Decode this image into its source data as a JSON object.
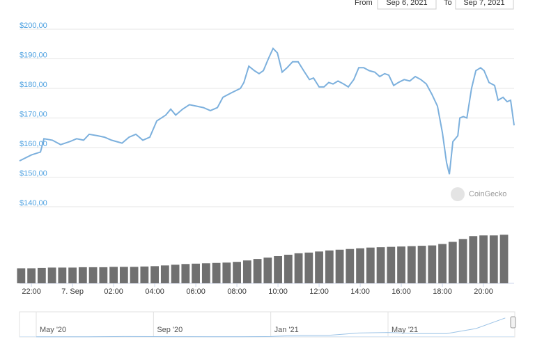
{
  "range_selector": {
    "from_label": "From",
    "from_date": "Sep 6, 2021",
    "to_label": "To",
    "to_date": "Sep 7, 2021"
  },
  "watermark": "CoinGecko",
  "chart_data": [
    {
      "type": "line",
      "color": "#7cb0dd",
      "grid": true,
      "x": [
        21.42,
        22.0,
        22.44,
        22.61,
        23.02,
        23.42,
        23.86,
        24.2,
        24.54,
        24.81,
        25.22,
        25.56,
        25.9,
        26.41,
        26.75,
        27.08,
        27.42,
        27.76,
        28.1,
        28.54,
        28.78,
        29.02,
        29.36,
        29.69,
        30.03,
        30.37,
        30.71,
        31.05,
        31.32,
        31.73,
        32.17,
        32.34,
        32.58,
        32.85,
        33.08,
        33.29,
        33.53,
        33.76,
        33.97,
        34.2,
        34.44,
        34.71,
        34.98,
        35.25,
        35.53,
        35.73,
        36.0,
        36.24,
        36.47,
        36.68,
        36.92,
        37.19,
        37.42,
        37.69,
        37.93,
        38.17,
        38.44,
        38.71,
        38.95,
        39.19,
        39.39,
        39.63,
        39.86,
        40.14,
        40.41,
        40.68,
        40.95,
        41.22,
        41.49,
        41.76,
        42.0,
        42.2,
        42.34,
        42.51,
        42.75,
        42.85,
        43.02,
        43.19,
        43.42,
        43.63,
        43.86,
        44.03,
        44.27,
        44.54,
        44.71,
        44.95,
        45.15,
        45.32,
        45.49
      ],
      "values": [
        155.5,
        157.5,
        158.5,
        163,
        162.5,
        161,
        162,
        163,
        162.5,
        164.5,
        164,
        163.5,
        162.5,
        161.5,
        163.5,
        164.5,
        162.5,
        163.5,
        169,
        171,
        173,
        171,
        173,
        174.5,
        174,
        173.5,
        172.5,
        173.5,
        177,
        178.5,
        180,
        182,
        187.5,
        186,
        185,
        186,
        190,
        193.5,
        192,
        185.5,
        187,
        189,
        189,
        186,
        183,
        183.5,
        180.5,
        180.5,
        182,
        181.5,
        182.5,
        181.5,
        180.5,
        183,
        187,
        187,
        186,
        185.5,
        184,
        185,
        184.5,
        181,
        182,
        183,
        182.5,
        184,
        183,
        181.5,
        178,
        174,
        165,
        155,
        151,
        162,
        164,
        170,
        170.5,
        170,
        180,
        186,
        187,
        186,
        182,
        181,
        176,
        177,
        175.5,
        176,
        167.5
      ],
      "xlim": [
        21.42,
        45.49
      ],
      "xticks": [
        {
          "value": 22,
          "label": "22:00"
        },
        {
          "value": 24,
          "label": "7. Sep"
        },
        {
          "value": 26,
          "label": "02:00"
        },
        {
          "value": 28,
          "label": "04:00"
        },
        {
          "value": 30,
          "label": "06:00"
        },
        {
          "value": 32,
          "label": "08:00"
        },
        {
          "value": 34,
          "label": "10:00"
        },
        {
          "value": 36,
          "label": "12:00"
        },
        {
          "value": 38,
          "label": "14:00"
        },
        {
          "value": 40,
          "label": "16:00"
        },
        {
          "value": 42,
          "label": "18:00"
        },
        {
          "value": 44,
          "label": "20:00"
        }
      ],
      "ylim": [
        140,
        200
      ],
      "yticks": [
        {
          "value": 140,
          "label": "$140,00"
        },
        {
          "value": 150,
          "label": "$150,00"
        },
        {
          "value": 160,
          "label": "$160,00"
        },
        {
          "value": 170,
          "label": "$170,00"
        },
        {
          "value": 180,
          "label": "$180,00"
        },
        {
          "value": 190,
          "label": "$190,00"
        },
        {
          "value": 200,
          "label": "$200,00"
        }
      ]
    },
    {
      "type": "bar",
      "color": "#707070",
      "x": [
        21.5,
        22,
        22.5,
        23,
        23.5,
        24,
        24.5,
        25,
        25.5,
        26,
        26.5,
        27,
        27.5,
        28,
        28.5,
        29,
        29.5,
        30,
        30.5,
        31,
        31.5,
        32,
        32.5,
        33,
        33.5,
        34,
        34.5,
        35,
        35.5,
        36,
        36.5,
        37,
        37.5,
        38,
        38.5,
        39,
        39.5,
        40,
        40.5,
        41,
        41.5,
        42,
        42.5,
        43,
        43.5,
        44,
        44.5,
        45
      ],
      "values": [
        21,
        21,
        21.5,
        22,
        22,
        22,
        22.5,
        22.5,
        22.5,
        23,
        23,
        23,
        23.5,
        24,
        25,
        26,
        27,
        27.5,
        28,
        28.5,
        29,
        30,
        32,
        34,
        36,
        38,
        40,
        42,
        43,
        44.5,
        46,
        47,
        48,
        49,
        50,
        50.5,
        51,
        51.5,
        52,
        52.5,
        53,
        55,
        58,
        62,
        66,
        67,
        67,
        68
      ],
      "ylim": [
        0,
        75
      ]
    },
    {
      "type": "line",
      "color": "#9cc3e6",
      "categories": [
        "May '20",
        null,
        null,
        null,
        "Sep '20",
        null,
        null,
        null,
        "Jan '21",
        null,
        null,
        null,
        "May '21",
        null,
        null,
        null,
        null
      ],
      "values": [
        0.6,
        0.9,
        1.5,
        4,
        3,
        2.5,
        2,
        1.5,
        3.5,
        15,
        15,
        35,
        40,
        30,
        30,
        75,
        170
      ],
      "ylim": [
        0,
        200
      ]
    }
  ]
}
